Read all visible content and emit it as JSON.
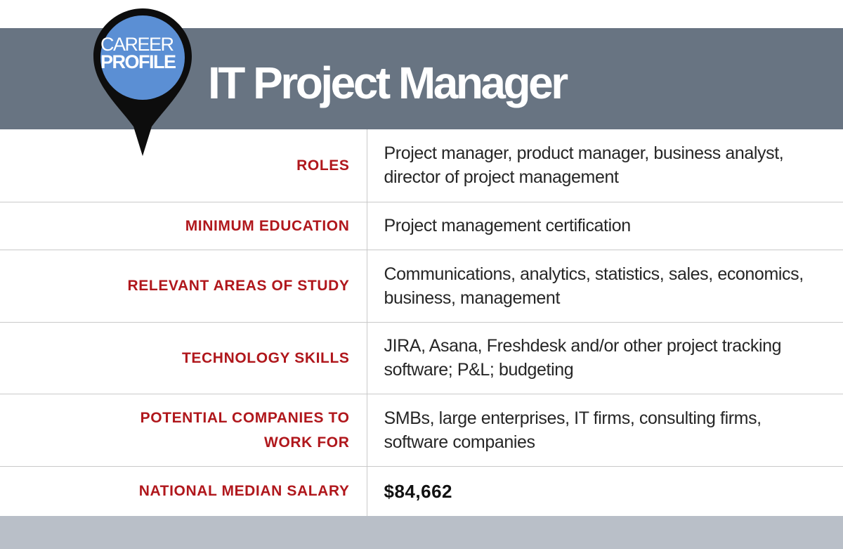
{
  "header": {
    "badge_line1": "CAREER",
    "badge_line2": "PROFILE",
    "title": "IT Project Manager"
  },
  "colors": {
    "header_band": "#687482",
    "pin_fill": "#5b8fd4",
    "pin_outline": "#0d0d0d",
    "label_red": "#b0171c",
    "footer_band": "#b9bfc8",
    "grid_line": "#c9c9c9"
  },
  "rows": [
    {
      "label": "ROLES",
      "value": "Project manager, product manager, business analyst, director of project management"
    },
    {
      "label": "MINIMUM EDUCATION",
      "value": "Project management certification"
    },
    {
      "label": "RELEVANT AREAS OF STUDY",
      "value": "Communications, analytics, statistics, sales, economics, business, management"
    },
    {
      "label": "TECHNOLOGY SKILLS",
      "value": " JIRA, Asana, Freshdesk and/or other project tracking software; P&L; budgeting"
    },
    {
      "label": "POTENTIAL COMPANIES TO WORK FOR",
      "value": "SMBs, large enterprises, IT firms, consulting firms, software companies"
    },
    {
      "label": "NATIONAL MEDIAN SALARY",
      "value": "$84,662"
    }
  ]
}
